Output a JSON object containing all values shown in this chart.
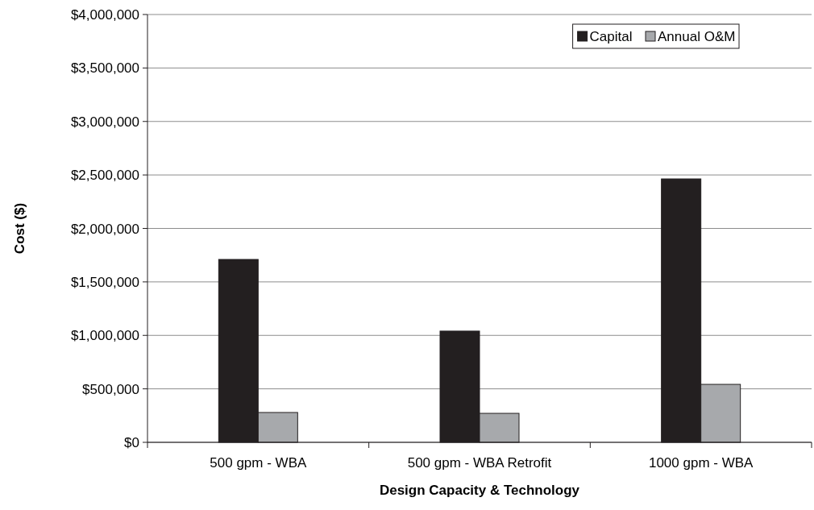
{
  "chart_data": {
    "type": "bar",
    "xlabel": "Design Capacity & Technology",
    "ylabel": "Cost ($)",
    "categories": [
      "500 gpm - WBA",
      "500 gpm - WBA Retrofit",
      "1000 gpm - WBA"
    ],
    "series": [
      {
        "name": "Capital",
        "color": "#231f20",
        "values": [
          1710000,
          1040000,
          2463000
        ]
      },
      {
        "name": "Annual O&M",
        "color": "#a7a9ac",
        "values": [
          279000,
          271000,
          542000
        ]
      }
    ],
    "ylim": [
      0,
      4000000
    ],
    "yticks": [
      {
        "value": 0,
        "label": "$0"
      },
      {
        "value": 500000,
        "label": "$500,000"
      },
      {
        "value": 1000000,
        "label": "$1,000,000"
      },
      {
        "value": 1500000,
        "label": "$1,500,000"
      },
      {
        "value": 2000000,
        "label": "$2,000,000"
      },
      {
        "value": 2500000,
        "label": "$2,500,000"
      },
      {
        "value": 3000000,
        "label": "$3,000,000"
      },
      {
        "value": 3500000,
        "label": "$3,500,000"
      },
      {
        "value": 4000000,
        "label": "$4,000,000"
      }
    ],
    "grid": "y",
    "legend": "top right"
  }
}
